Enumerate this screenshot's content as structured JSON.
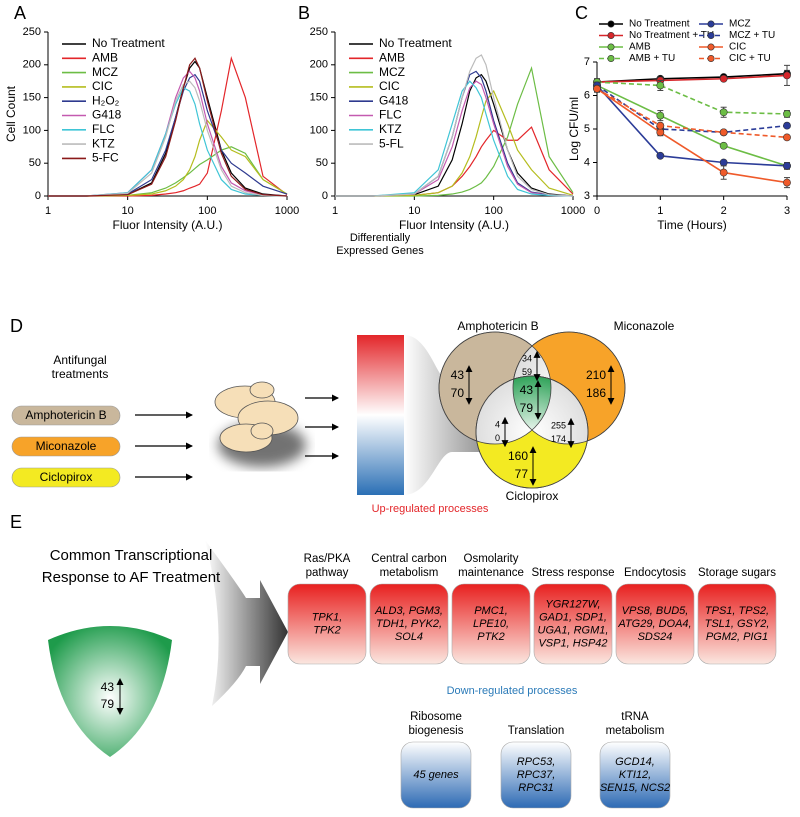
{
  "chart_data": [
    {
      "type": "line",
      "label": "A",
      "xscale": "log",
      "xlabel": "Fluor Intensity (A.U.)",
      "ylabel": "Cell Count",
      "x": [
        1,
        3,
        10,
        20,
        30,
        40,
        50,
        60,
        70,
        80,
        100,
        150,
        200,
        300,
        500,
        1000
      ],
      "xlim": [
        1,
        1000
      ],
      "xticks": [
        1,
        10,
        100,
        1000
      ],
      "ylim": [
        0,
        250
      ],
      "yticks": [
        0,
        50,
        100,
        150,
        200,
        250
      ],
      "legend": "upper left",
      "series": [
        {
          "name": "No Treatment",
          "color": "#000000",
          "values": [
            0,
            0,
            2,
            20,
            65,
            120,
            165,
            195,
            205,
            195,
            150,
            70,
            35,
            12,
            3,
            0
          ]
        },
        {
          "name": "AMB",
          "color": "#e3262a",
          "values": [
            0,
            0,
            0,
            1,
            3,
            5,
            8,
            12,
            15,
            18,
            35,
            130,
            210,
            150,
            30,
            2
          ]
        },
        {
          "name": "MCZ",
          "color": "#6cbd45",
          "values": [
            0,
            0,
            1,
            5,
            12,
            20,
            28,
            35,
            42,
            48,
            55,
            70,
            75,
            65,
            25,
            3
          ]
        },
        {
          "name": "CIC",
          "color": "#b5bd1f",
          "values": [
            0,
            0,
            1,
            3,
            8,
            15,
            25,
            40,
            60,
            85,
            115,
            90,
            70,
            60,
            25,
            3
          ]
        },
        {
          "name": "H₂O₂",
          "color": "#2e3a8f",
          "values": [
            0,
            0,
            3,
            25,
            70,
            120,
            160,
            180,
            185,
            175,
            130,
            70,
            50,
            35,
            15,
            3
          ]
        },
        {
          "name": "G418",
          "color": "#c45ab0",
          "values": [
            0,
            0,
            5,
            40,
            95,
            150,
            180,
            190,
            180,
            160,
            110,
            45,
            20,
            8,
            2,
            0
          ]
        },
        {
          "name": "FLC",
          "color": "#3fc5d6",
          "values": [
            0,
            0,
            5,
            40,
            95,
            140,
            165,
            160,
            140,
            110,
            70,
            25,
            10,
            3,
            1,
            0
          ]
        },
        {
          "name": "KTZ",
          "color": "#bbbbbb",
          "values": [
            0,
            0,
            4,
            35,
            90,
            145,
            170,
            175,
            165,
            145,
            100,
            40,
            15,
            5,
            1,
            0
          ]
        },
        {
          "name": "5-FC",
          "color": "#8b1a1a",
          "values": [
            0,
            0,
            2,
            18,
            60,
            115,
            165,
            200,
            210,
            195,
            145,
            65,
            30,
            10,
            2,
            0
          ]
        }
      ]
    },
    {
      "type": "line",
      "label": "B",
      "xscale": "log",
      "xlabel": "Fluor Intensity (A.U.)",
      "x": [
        1,
        3,
        10,
        20,
        30,
        40,
        50,
        60,
        70,
        80,
        100,
        150,
        200,
        300,
        500,
        1000
      ],
      "xlim": [
        1,
        1000
      ],
      "xticks": [
        1,
        10,
        100,
        1000
      ],
      "ylim": [
        0,
        250
      ],
      "yticks": [
        0,
        50,
        100,
        150,
        200,
        250
      ],
      "legend": "upper left",
      "series": [
        {
          "name": "No Treatment",
          "color": "#000000",
          "values": [
            0,
            0,
            2,
            15,
            55,
            110,
            160,
            180,
            185,
            175,
            140,
            70,
            35,
            12,
            3,
            0
          ]
        },
        {
          "name": "AMB",
          "color": "#e3262a",
          "values": [
            0,
            0,
            1,
            5,
            15,
            30,
            45,
            60,
            75,
            85,
            100,
            85,
            85,
            105,
            40,
            3
          ]
        },
        {
          "name": "MCZ",
          "color": "#6cbd45",
          "values": [
            0,
            0,
            0,
            1,
            3,
            6,
            10,
            15,
            20,
            28,
            45,
            90,
            140,
            195,
            60,
            5
          ]
        },
        {
          "name": "CIC",
          "color": "#b5bd1f",
          "values": [
            0,
            0,
            1,
            5,
            15,
            35,
            60,
            90,
            120,
            145,
            160,
            110,
            70,
            40,
            12,
            1
          ]
        },
        {
          "name": "G418",
          "color": "#2e3a8f",
          "values": [
            0,
            0,
            3,
            30,
            90,
            150,
            185,
            190,
            180,
            160,
            115,
            50,
            20,
            6,
            2,
            0
          ]
        },
        {
          "name": "FLC",
          "color": "#c45ab0",
          "values": [
            0,
            0,
            3,
            25,
            75,
            130,
            165,
            175,
            170,
            150,
            110,
            45,
            18,
            5,
            1,
            0
          ]
        },
        {
          "name": "KTZ",
          "color": "#3fc5d6",
          "values": [
            0,
            0,
            5,
            40,
            110,
            160,
            175,
            165,
            150,
            125,
            85,
            30,
            10,
            3,
            1,
            0
          ]
        },
        {
          "name": "5-FL",
          "color": "#bbbbbb",
          "values": [
            0,
            0,
            3,
            30,
            90,
            150,
            190,
            210,
            215,
            200,
            150,
            70,
            30,
            10,
            2,
            0
          ]
        }
      ]
    },
    {
      "type": "line",
      "label": "C",
      "xlabel": "Time (Hours)",
      "ylabel": "Log CFU/ml",
      "x": [
        0,
        1,
        2,
        3
      ],
      "xlim": [
        0,
        3
      ],
      "xticks": [
        0,
        1,
        2,
        3
      ],
      "ylim": [
        3,
        7
      ],
      "yticks": [
        3,
        4,
        5,
        6,
        7
      ],
      "legend": "above",
      "legend_columns": 2,
      "markers": true,
      "series": [
        {
          "name": "No Treatment",
          "color": "#000000",
          "linestyle": "solid",
          "values": [
            6.4,
            6.5,
            6.55,
            6.65
          ],
          "errors": [
            0.05,
            0.05,
            0.05,
            0.1
          ]
        },
        {
          "name": "No Treatment + TU",
          "color": "#d7262a",
          "linestyle": "solid",
          "values": [
            6.4,
            6.45,
            6.5,
            6.6
          ],
          "errors": [
            0.1,
            0.1,
            0.05,
            0.3
          ]
        },
        {
          "name": "AMB",
          "color": "#6cbd45",
          "linestyle": "solid",
          "values": [
            6.3,
            5.4,
            4.5,
            3.9
          ],
          "errors": [
            0.1,
            0.15,
            0.05,
            0.1
          ]
        },
        {
          "name": "AMB + TU",
          "color": "#6cbd45",
          "linestyle": "dashed",
          "values": [
            6.4,
            6.3,
            5.5,
            5.45
          ],
          "errors": [
            0.1,
            0.15,
            0.15,
            0.1
          ]
        },
        {
          "name": "MCZ",
          "color": "#2b3c98",
          "linestyle": "solid",
          "values": [
            6.3,
            4.2,
            4.0,
            3.9
          ],
          "errors": [
            0.1,
            0.05,
            0.05,
            0.1
          ]
        },
        {
          "name": "MCZ + TU",
          "color": "#2b3c98",
          "linestyle": "dashed",
          "values": [
            6.3,
            5.0,
            4.9,
            5.1
          ],
          "errors": [
            0.05,
            0.1,
            0.05,
            0.05
          ]
        },
        {
          "name": "CIC",
          "color": "#ef5a2a",
          "linestyle": "solid",
          "values": [
            6.2,
            4.9,
            3.7,
            3.4
          ],
          "errors": [
            0.1,
            0.1,
            0.2,
            0.15
          ]
        },
        {
          "name": "CIC + TU",
          "color": "#ef5a2a",
          "linestyle": "dashed",
          "values": [
            6.2,
            5.1,
            4.9,
            4.75
          ],
          "errors": [
            0.1,
            0.05,
            0.05,
            0.05
          ]
        }
      ]
    }
  ],
  "panel_d": {
    "label": "D",
    "treatments_title": "Antifungal treatments",
    "treatments": [
      {
        "name": "Amphotericin B",
        "color": "#c9b79c"
      },
      {
        "name": "Miconazole",
        "color": "#f7a329"
      },
      {
        "name": "Ciclopirox",
        "color": "#f3ea22"
      }
    ],
    "heatmap_title": "Differentially Expressed Genes",
    "venn": {
      "labels": [
        "Amphotericin B",
        "Miconazole",
        "Ciclopirox"
      ],
      "regions": [
        {
          "up": 43,
          "down": 70
        },
        {
          "up": 210,
          "down": 186
        },
        {
          "up": 160,
          "down": 77
        },
        {
          "up": 34,
          "down": 59
        },
        {
          "up": 4,
          "down": 0
        },
        {
          "up": 255,
          "down": 174
        },
        {
          "up": 43,
          "down": 79
        }
      ]
    }
  },
  "panel_e": {
    "label": "E",
    "common_title": "Common Transcriptional Response to AF Treatment",
    "common": {
      "up": 43,
      "down": 79
    },
    "up_title": "Up-regulated processes",
    "up": [
      {
        "name": "Ras/PKA pathway",
        "genes": [
          "TPK1,",
          "TPK2"
        ]
      },
      {
        "name": "Central carbon metabolism",
        "genes": [
          "ALD3, PGM3,",
          "TDH1, PYK2,",
          "SOL4"
        ]
      },
      {
        "name": "Osmolarity maintenance",
        "genes": [
          "PMC1,",
          "LPE10,",
          "PTK2"
        ]
      },
      {
        "name": "Stress response",
        "genes": [
          "YGR127W,",
          "GAD1, SDP1,",
          "UGA1, RGM1,",
          "VSP1, HSP42"
        ]
      },
      {
        "name": "Endocytosis",
        "genes": [
          "VPS8, BUD5,",
          "ATG29, DOA4,",
          "SDS24"
        ]
      },
      {
        "name": "Storage sugars",
        "genes": [
          "TPS1, TPS2,",
          "TSL1, GSY2,",
          "PGM2, PIG1"
        ]
      }
    ],
    "down_title": "Down-regulated processes",
    "down": [
      {
        "name": "Ribosome biogenesis",
        "genes": [
          "45 genes"
        ]
      },
      {
        "name": "Translation",
        "genes": [
          "RPC53,",
          "RPC37,",
          "RPC31"
        ]
      },
      {
        "name": "tRNA metabolism",
        "genes": [
          "GCD14,",
          "KTI12,",
          "SEN15, NCS2"
        ]
      }
    ]
  }
}
